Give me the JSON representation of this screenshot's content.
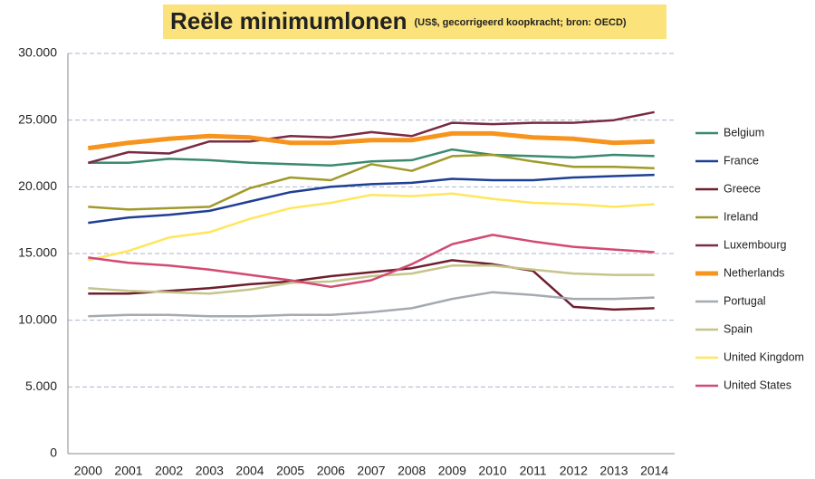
{
  "chart_data": {
    "type": "line",
    "title": "Reële minimumlonen",
    "subtitle": "(US$, gecorrigeerd koopkracht; bron: OECD)",
    "categories": [
      "2000",
      "2001",
      "2002",
      "2003",
      "2004",
      "2005",
      "2006",
      "2007",
      "2008",
      "2009",
      "2010",
      "2011",
      "2012",
      "2013",
      "2014"
    ],
    "ylim": [
      0,
      30000
    ],
    "yticks": [
      0,
      {
        "value": 5000,
        "label": "5.000"
      },
      {
        "value": 10000,
        "label": "10.000"
      },
      {
        "value": 15000,
        "label": "15.000"
      },
      {
        "value": 20000,
        "label": "20.000"
      },
      {
        "value": 25000,
        "label": "25.000"
      },
      {
        "value": 30000,
        "label": "30.000"
      }
    ],
    "grid": true,
    "legend": "right",
    "series": [
      {
        "name": "Belgium",
        "color": "#3a8a6e",
        "values": [
          21800,
          21800,
          22100,
          22000,
          21800,
          21700,
          21600,
          21900,
          22000,
          22800,
          22400,
          22300,
          22200,
          22400,
          22300
        ]
      },
      {
        "name": "France",
        "color": "#1f3f94",
        "values": [
          17300,
          17700,
          17900,
          18200,
          18900,
          19600,
          20000,
          20200,
          20300,
          20600,
          20500,
          20500,
          20700,
          20800,
          20900
        ]
      },
      {
        "name": "Greece",
        "color": "#6e1f2e",
        "values": [
          12000,
          12000,
          12200,
          12400,
          12700,
          12900,
          13300,
          13600,
          13900,
          14500,
          14200,
          13700,
          11000,
          10800,
          10900
        ]
      },
      {
        "name": "Ireland",
        "color": "#a09a2a",
        "values": [
          18500,
          18300,
          18400,
          18500,
          19900,
          20700,
          20500,
          21700,
          21200,
          22300,
          22400,
          21900,
          21500,
          21500,
          21400
        ]
      },
      {
        "name": "Luxembourg",
        "color": "#7a2a42",
        "values": [
          21800,
          22600,
          22500,
          23400,
          23400,
          23800,
          23700,
          24100,
          23800,
          24800,
          24700,
          24800,
          24800,
          25000,
          25600
        ]
      },
      {
        "name": "Netherlands",
        "color": "#f7941d",
        "values": [
          22900,
          23300,
          23600,
          23800,
          23700,
          23300,
          23300,
          23500,
          23500,
          24000,
          24000,
          23700,
          23600,
          23300,
          23400
        ]
      },
      {
        "name": "Portugal",
        "color": "#a5aab0",
        "values": [
          10300,
          10400,
          10400,
          10300,
          10300,
          10400,
          10400,
          10600,
          10900,
          11600,
          12100,
          11900,
          11600,
          11600,
          11700
        ]
      },
      {
        "name": "Spain",
        "color": "#c5c48a",
        "values": [
          12400,
          12200,
          12100,
          12000,
          12300,
          12800,
          12900,
          13300,
          13500,
          14100,
          14100,
          13800,
          13500,
          13400,
          13400
        ]
      },
      {
        "name": "United Kingdom",
        "color": "#ffe65a",
        "values": [
          14500,
          15200,
          16200,
          16600,
          17600,
          18400,
          18800,
          19400,
          19300,
          19500,
          19100,
          18800,
          18700,
          18500,
          18700
        ]
      },
      {
        "name": "United States",
        "color": "#d24a72",
        "values": [
          14700,
          14300,
          14100,
          13800,
          13400,
          13000,
          12500,
          13000,
          14200,
          15700,
          16400,
          15900,
          15500,
          15300,
          15100
        ]
      }
    ]
  }
}
